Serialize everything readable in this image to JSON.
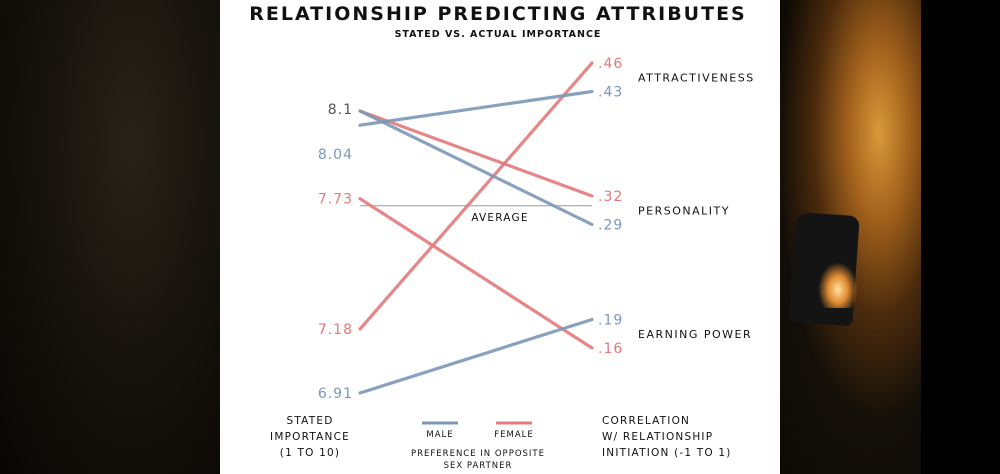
{
  "colors": {
    "male": "#7b97b8",
    "female": "#e4797a",
    "text": "#111111",
    "average_line": "#9a9a9a"
  },
  "chart_data": {
    "type": "line",
    "title": "RELATIONSHIP PREDICTING ATTRIBUTES",
    "subtitle": "STATED VS. ACTUAL IMPORTANCE",
    "left_axis": {
      "label": [
        "STATED",
        "IMPORTANCE",
        "(1 TO 10)"
      ],
      "range": [
        6.8,
        8.3
      ]
    },
    "right_axis": {
      "label": [
        "CORRELATION",
        "W/ RELATIONSHIP",
        "INITIATION (-1 TO 1)"
      ],
      "range": [
        0.1,
        0.5
      ]
    },
    "average_label": "AVERAGE",
    "average_value": 7.7,
    "attributes": [
      {
        "name": "ATTRACTIVENESS",
        "label_at": 0.445
      },
      {
        "name": "PERSONALITY",
        "label_at": 0.305
      },
      {
        "name": "EARNING POWER",
        "label_at": 0.175
      }
    ],
    "series": [
      {
        "name": "MALE",
        "color": "#7b97b8",
        "lines": [
          {
            "attribute": "ATTRACTIVENESS",
            "stated": 8.04,
            "stated_label": "8.04",
            "actual": 0.43,
            "actual_label": ".43"
          },
          {
            "attribute": "PERSONALITY",
            "stated": 8.1,
            "stated_label": "8.1",
            "actual": 0.29,
            "actual_label": ".29"
          },
          {
            "attribute": "EARNING POWER",
            "stated": 6.91,
            "stated_label": "6.91",
            "actual": 0.19,
            "actual_label": ".19"
          }
        ]
      },
      {
        "name": "FEMALE",
        "color": "#e4797a",
        "lines": [
          {
            "attribute": "ATTRACTIVENESS",
            "stated": 7.18,
            "stated_label": "7.18",
            "actual": 0.46,
            "actual_label": ".46"
          },
          {
            "attribute": "PERSONALITY",
            "stated": 8.1,
            "stated_label": "",
            "actual": 0.32,
            "actual_label": ".32"
          },
          {
            "attribute": "EARNING POWER",
            "stated": 7.73,
            "stated_label": "7.73",
            "actual": 0.16,
            "actual_label": ".16"
          }
        ]
      }
    ],
    "legend": {
      "items": [
        {
          "name": "MALE",
          "color": "#7b97b8"
        },
        {
          "name": "FEMALE",
          "color": "#e4797a"
        }
      ],
      "caption": [
        "PREFERENCE IN OPPOSITE",
        "SEX PARTNER"
      ]
    }
  }
}
